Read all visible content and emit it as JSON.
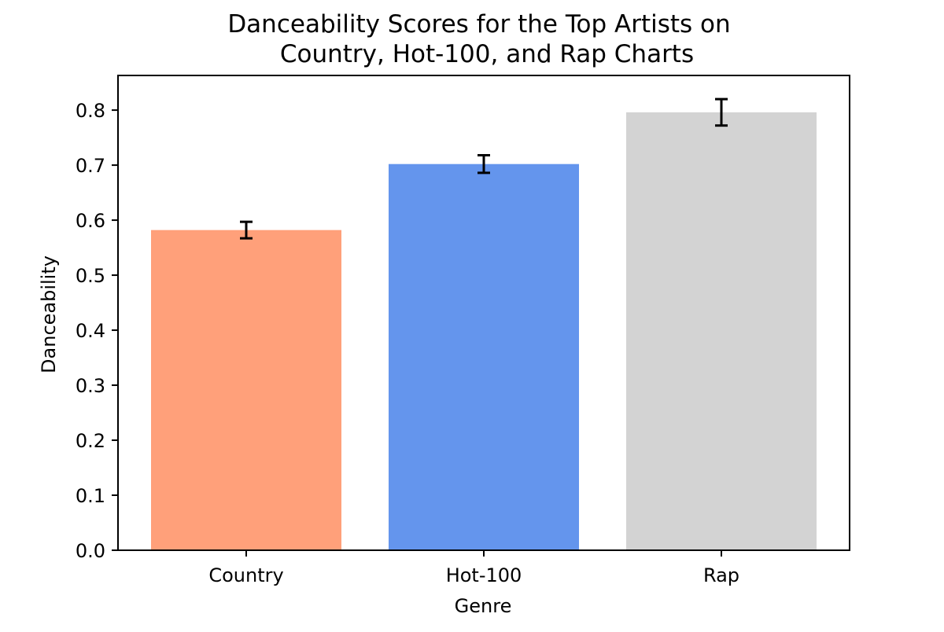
{
  "chart_data": {
    "type": "bar",
    "title_lines": [
      "Danceability Scores for the Top Artists on",
      "Country, Hot-100, and Rap Charts"
    ],
    "xlabel": "Genre",
    "ylabel": "Danceability",
    "categories": [
      "Country",
      "Hot-100",
      "Rap"
    ],
    "values": [
      0.582,
      0.702,
      0.796
    ],
    "errors": [
      0.015,
      0.016,
      0.024
    ],
    "colors": [
      "#FFA07A",
      "#6495ED",
      "#D3D3D3"
    ],
    "ylim": [
      0,
      0.863
    ],
    "yticks": [
      0.0,
      0.1,
      0.2,
      0.3,
      0.4,
      0.5,
      0.6,
      0.7,
      0.8
    ],
    "ytick_labels": [
      "0.0",
      "0.1",
      "0.2",
      "0.3",
      "0.4",
      "0.5",
      "0.6",
      "0.7",
      "0.8"
    ],
    "grid": false,
    "legend": "none"
  }
}
